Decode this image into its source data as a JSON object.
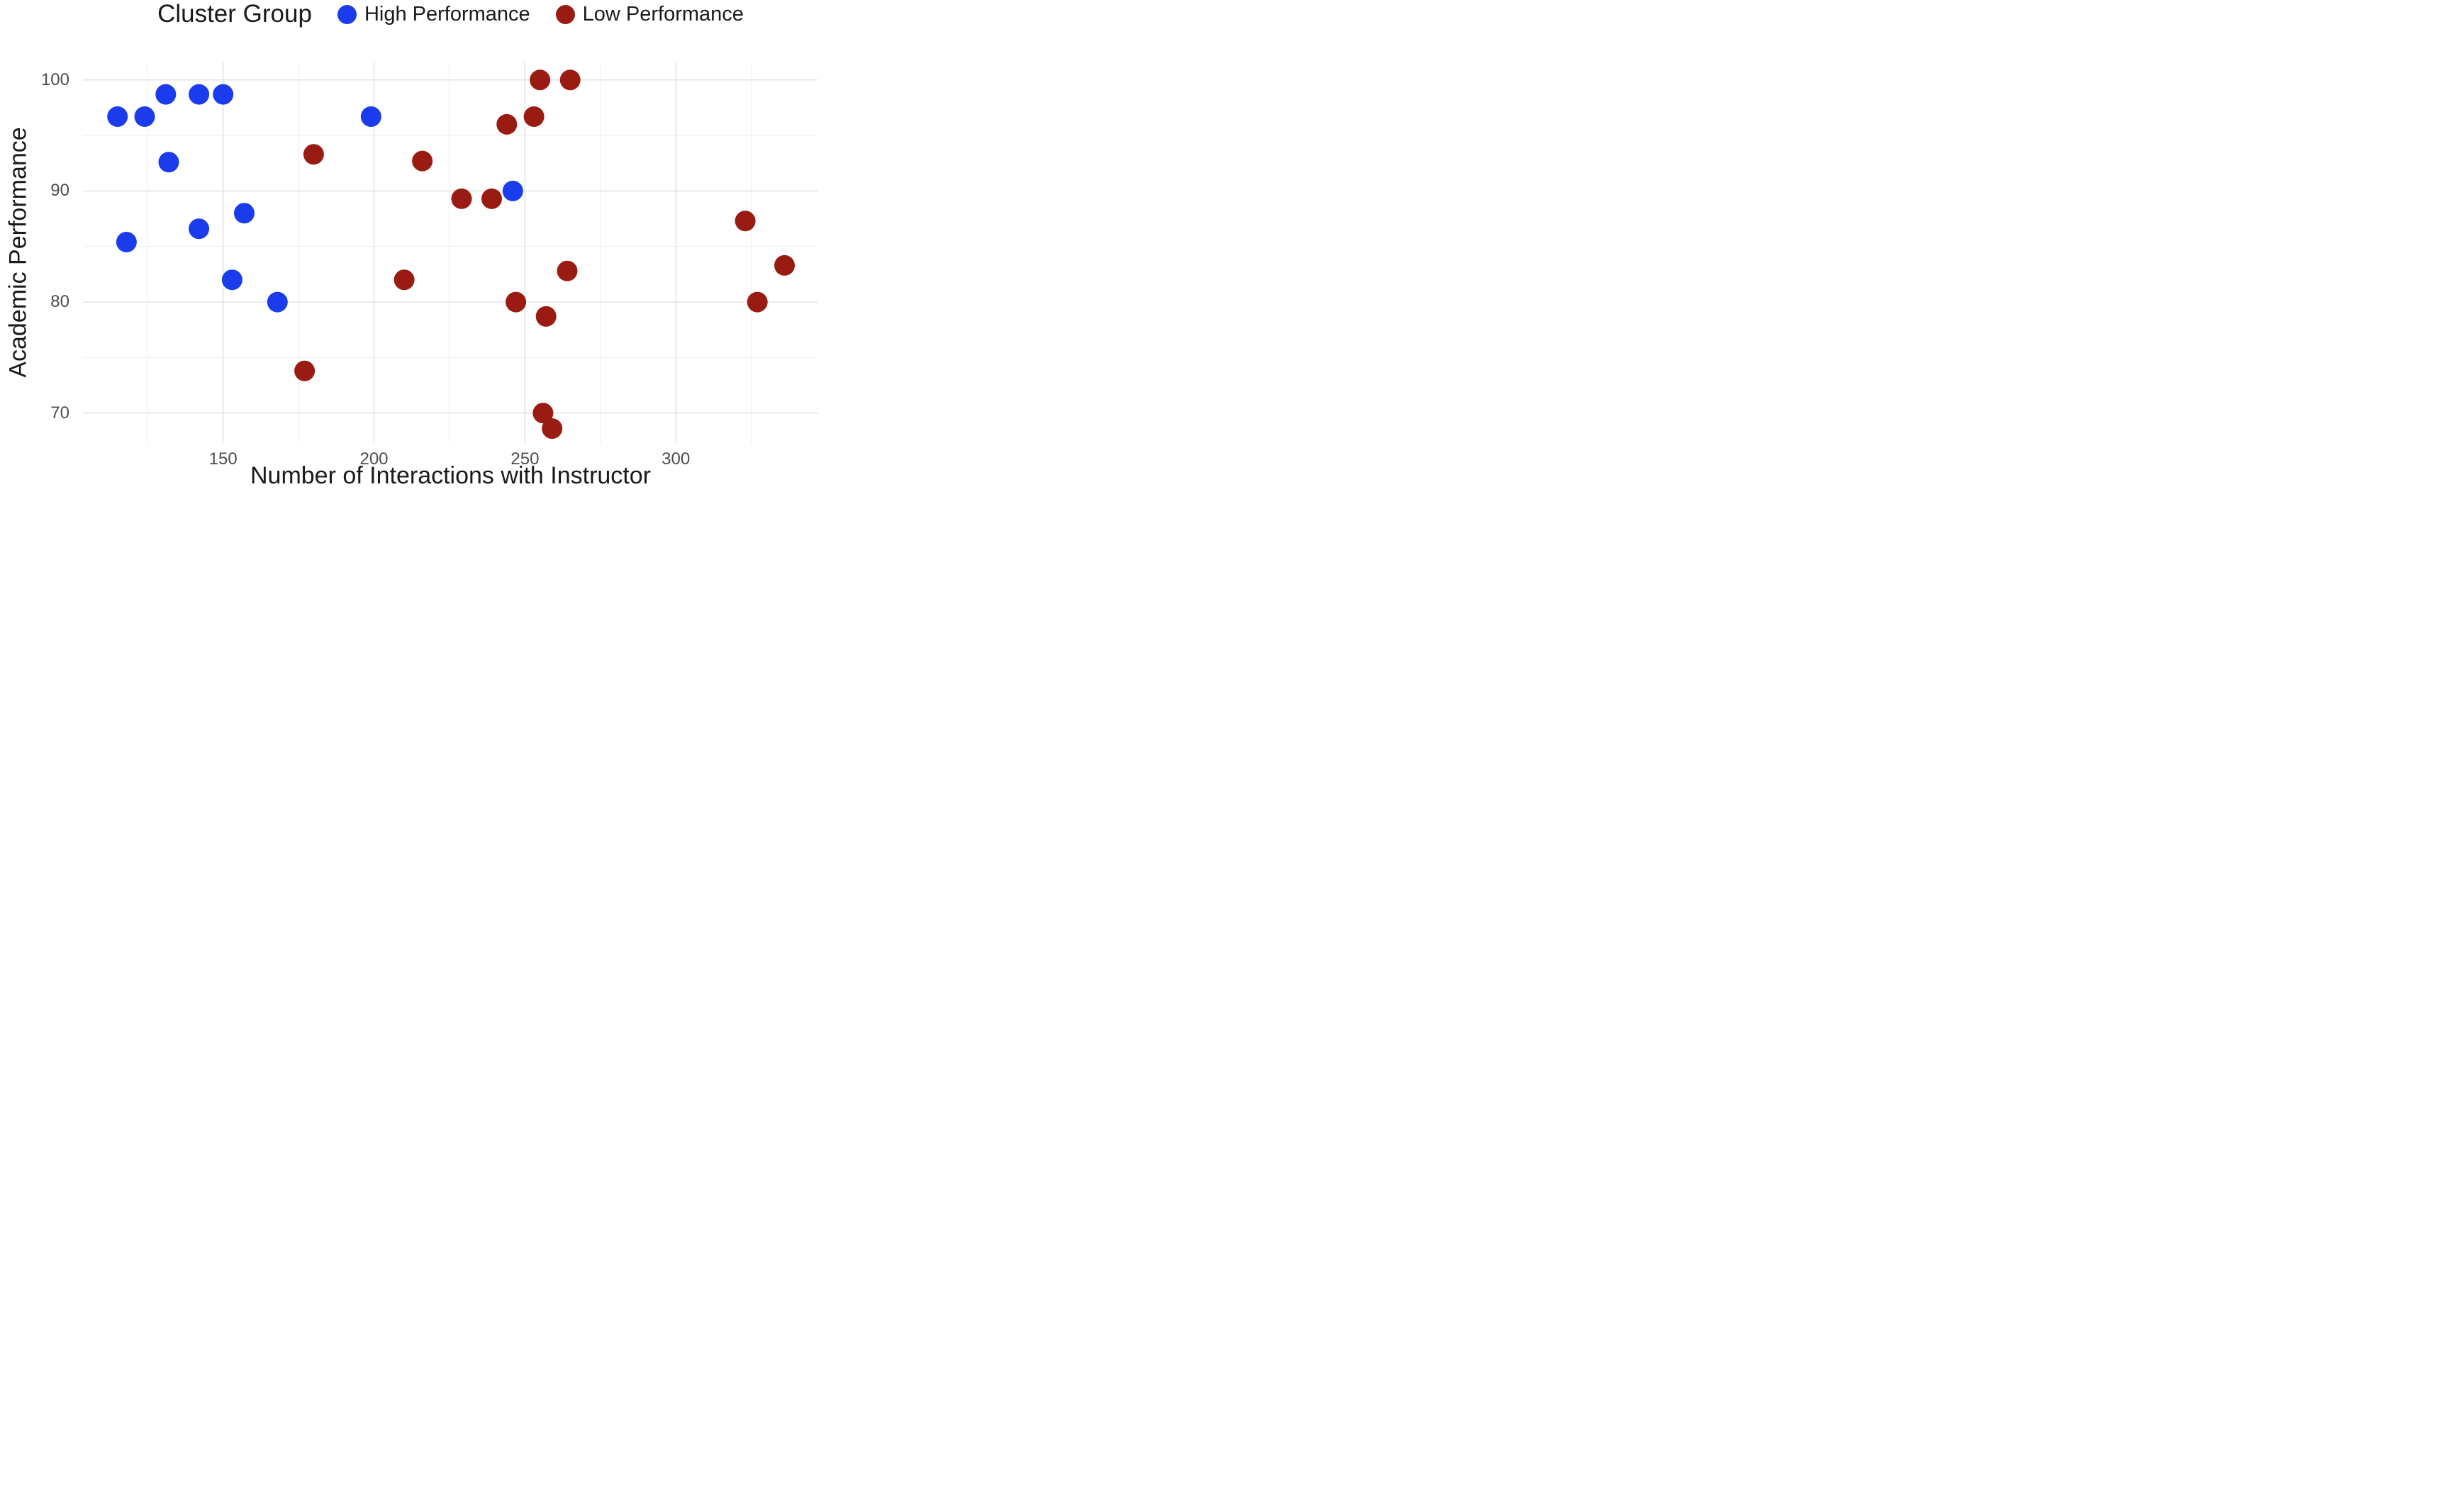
{
  "chart_data": {
    "type": "scatter",
    "title": "",
    "legend_title": "Cluster Group",
    "legend_position": "top",
    "xlabel": "Number of Interactions with Instructor",
    "ylabel": "Academic Performance",
    "xlim": [
      103.5,
      347
    ],
    "ylim": [
      67.3,
      101.6
    ],
    "x_ticks": [
      150,
      200,
      250,
      300
    ],
    "x_minor_ticks": [
      125,
      175,
      225,
      275,
      325
    ],
    "y_ticks": [
      70,
      80,
      90,
      100
    ],
    "y_minor_ticks": [
      75,
      85,
      95
    ],
    "grid": "major+minor",
    "point_radius_px": 14.5,
    "colors": {
      "high_performance": "#1A3CEC",
      "low_performance": "#9A1B12",
      "grid_major": "#E3E3E3",
      "grid_minor": "#EFEFEF",
      "tick_text": "#4D4D4D",
      "title_text": "#1A1A1A",
      "background": "#FFFFFF"
    },
    "series": [
      {
        "name": "High Performance",
        "color": "#1A3CEC",
        "points": [
          [
            115,
            96.7
          ],
          [
            124,
            96.7
          ],
          [
            131,
            98.7
          ],
          [
            142,
            98.7
          ],
          [
            150,
            98.7
          ],
          [
            132,
            92.6
          ],
          [
            118,
            85.4
          ],
          [
            142,
            86.6
          ],
          [
            157,
            88.0
          ],
          [
            153,
            82.0
          ],
          [
            168,
            80.0
          ],
          [
            199,
            96.7
          ],
          [
            246,
            90.0
          ]
        ]
      },
      {
        "name": "Low Performance",
        "color": "#9A1B12",
        "points": [
          [
            177,
            73.8
          ],
          [
            180,
            93.3
          ],
          [
            210,
            82.0
          ],
          [
            216,
            92.7
          ],
          [
            229,
            89.3
          ],
          [
            239,
            89.3
          ],
          [
            244,
            96.0
          ],
          [
            247,
            80.0
          ],
          [
            253,
            96.7
          ],
          [
            255,
            100.0
          ],
          [
            256,
            70.0
          ],
          [
            257,
            78.7
          ],
          [
            259,
            68.6
          ],
          [
            264,
            82.8
          ],
          [
            265,
            100.0
          ],
          [
            323,
            87.3
          ],
          [
            327,
            80.0
          ],
          [
            336,
            83.3
          ]
        ]
      }
    ]
  }
}
